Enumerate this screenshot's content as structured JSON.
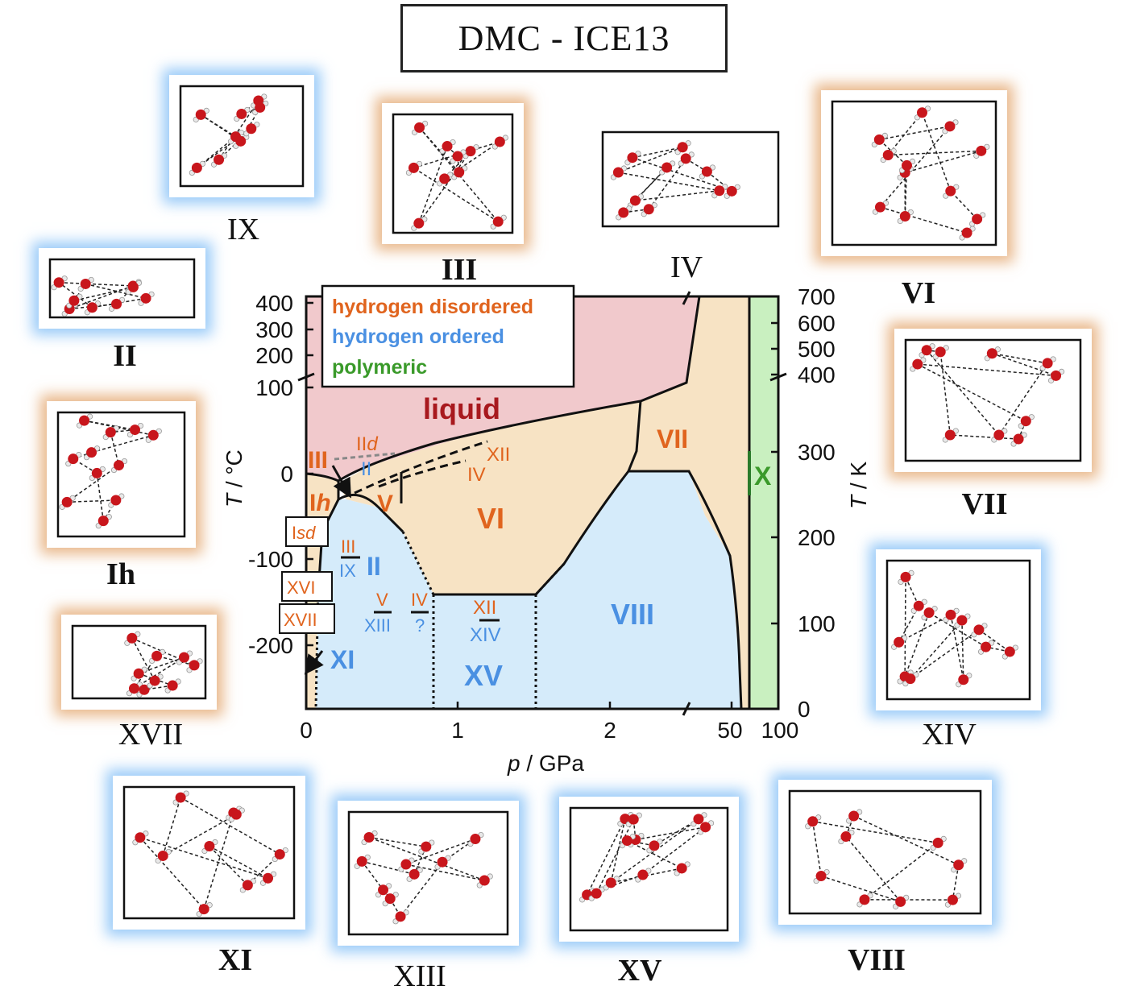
{
  "title": "DMC - ICE13",
  "colors": {
    "disordered": "#e0641e",
    "ordered": "#4a90e2",
    "polymeric": "#3a9a2a",
    "liquid_fill": "#f1c9cc",
    "disordered_fill": "#f7e3c4",
    "ordered_fill": "#d5ebfa",
    "polymeric_fill": "#c9f0c0",
    "atom_o": "#c8161c",
    "atom_h": "#e8e8e8"
  },
  "panels": [
    {
      "id": "IX",
      "label": "IX",
      "bold": false,
      "glow": "blue"
    },
    {
      "id": "III",
      "label": "III",
      "bold": true,
      "glow": "orange"
    },
    {
      "id": "IV",
      "label": "IV",
      "bold": false,
      "glow": "none"
    },
    {
      "id": "VI",
      "label": "VI",
      "bold": true,
      "glow": "orange"
    },
    {
      "id": "II",
      "label": "II",
      "bold": true,
      "glow": "blue"
    },
    {
      "id": "VII",
      "label": "VII",
      "bold": true,
      "glow": "orange"
    },
    {
      "id": "Ih",
      "label": "Ih",
      "bold": true,
      "glow": "orange"
    },
    {
      "id": "XIV",
      "label": "XIV",
      "bold": false,
      "glow": "blue"
    },
    {
      "id": "XVII",
      "label": "XVII",
      "bold": false,
      "glow": "orange"
    },
    {
      "id": "XI",
      "label": "XI",
      "bold": true,
      "glow": "blue"
    },
    {
      "id": "XIII",
      "label": "XIII",
      "bold": false,
      "glow": "blue"
    },
    {
      "id": "XV",
      "label": "XV",
      "bold": true,
      "glow": "blue"
    },
    {
      "id": "VIII",
      "label": "VIII",
      "bold": true,
      "glow": "blue"
    }
  ],
  "legend": {
    "disordered": "hydrogen disordered",
    "ordered": "hydrogen ordered",
    "polymeric": "polymeric"
  },
  "axes": {
    "xlabel_p": "p",
    "xlabel_unit": " / GPa",
    "ylabel_left_T": "T",
    "ylabel_left_unit": " / °C",
    "ylabel_right_T": "T",
    "ylabel_right_unit": " / K",
    "x_ticks": [
      "0",
      "1",
      "2",
      "50",
      "100"
    ],
    "y_left_ticks": [
      "400",
      "300",
      "200",
      "100",
      "0",
      "-100",
      "-200"
    ],
    "y_right_ticks": [
      "700",
      "600",
      "500",
      "400",
      "300",
      "200",
      "100",
      "0"
    ]
  },
  "phase_labels": {
    "liquid": "liquid",
    "VII": "VII",
    "X": "X",
    "VI": "VI",
    "V": "V",
    "III": "III",
    "Ih_I": "I",
    "Ih_h": "h",
    "II": "II",
    "VIII": "VIII",
    "XV": "XV",
    "XI": "XI",
    "IId_II": "II",
    "IId_d": "d",
    "IId_under": "II",
    "XII_top": "XII",
    "IV_top": "IV",
    "III_small": "III",
    "IX_small": "IX",
    "V_small": "V",
    "XIII_small": "XIII",
    "IV_small": "IV",
    "q_small": "?",
    "XII_small": "XII",
    "XIV_small": "XIV",
    "Isd_I": "I",
    "Isd_sd": "sd",
    "XVI": "XVI",
    "XVII": "XVII"
  }
}
